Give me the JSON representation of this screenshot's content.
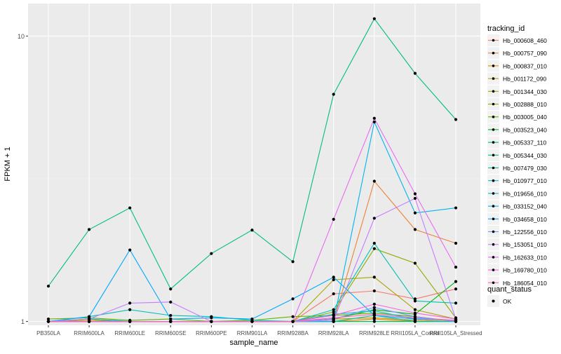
{
  "chart_data": {
    "type": "line",
    "xlabel": "sample_name",
    "ylabel": "FPKM + 1",
    "scale": "log10",
    "ylim": [
      0.97,
      13
    ],
    "y_ticks": [
      {
        "value": 1,
        "label": "1"
      },
      {
        "value": 10,
        "label": "10"
      }
    ],
    "categories": [
      "PB350LA",
      "RRIM600LA",
      "RRIM600LE",
      "RRIM600SE",
      "RRIM600PE",
      "RRIM901LA",
      "RRIM928BA",
      "RRIM928LA",
      "RRIM928LE",
      "RRII105LA_Control",
      "RRII105LA_Stressed"
    ],
    "legend_title": "tracking_id",
    "legend_position": "right",
    "legend2_title": "quant_status",
    "legend2_items": [
      "OK"
    ],
    "series": [
      {
        "name": "Hb_000608_460",
        "color": "#F8766D",
        "values": [
          1.0,
          1.02,
          1.0,
          1.0,
          1.0,
          1.0,
          1.0,
          1.25,
          1.28,
          1.2,
          1.3
        ]
      },
      {
        "name": "Hb_000757_090",
        "color": "#EC8239",
        "values": [
          1.0,
          1.0,
          1.0,
          1.0,
          1.0,
          1.0,
          1.0,
          1.0,
          3.1,
          2.1,
          1.88
        ]
      },
      {
        "name": "Hb_000837_010",
        "color": "#DB8E00",
        "values": [
          1.0,
          1.0,
          1.0,
          1.0,
          1.0,
          1.0,
          1.0,
          1.0,
          1.02,
          1.0,
          1.0
        ]
      },
      {
        "name": "Hb_001172_090",
        "color": "#C79800",
        "values": [
          1.0,
          1.01,
          1.0,
          1.0,
          1.0,
          1.0,
          1.0,
          1.02,
          1.03,
          1.01,
          1.0
        ]
      },
      {
        "name": "Hb_001344_030",
        "color": "#AEA200",
        "values": [
          1.0,
          1.0,
          1.0,
          1.0,
          1.0,
          1.0,
          1.0,
          1.4,
          1.43,
          1.1,
          1.02
        ]
      },
      {
        "name": "Hb_002888_010",
        "color": "#8FAA00",
        "values": [
          1.0,
          1.0,
          1.0,
          1.0,
          1.0,
          1.0,
          1.0,
          1.08,
          1.8,
          1.6,
          1.03
        ]
      },
      {
        "name": "Hb_003005_040",
        "color": "#64B200",
        "values": [
          1.02,
          1.03,
          1.01,
          1.02,
          1.0,
          1.01,
          1.04,
          1.05,
          1.07,
          1.04,
          1.0
        ]
      },
      {
        "name": "Hb_003523_040",
        "color": "#00B712",
        "values": [
          1.0,
          1.0,
          1.0,
          1.0,
          1.0,
          1.0,
          1.0,
          1.02,
          1.1,
          1.06,
          1.38
        ]
      },
      {
        "name": "Hb_005337_110",
        "color": "#00BC56",
        "values": [
          1.0,
          1.0,
          1.0,
          1.0,
          1.0,
          1.0,
          1.0,
          1.0,
          1.0,
          1.0,
          1.0
        ]
      },
      {
        "name": "Hb_005344_030",
        "color": "#00BF7D",
        "values": [
          1.33,
          2.1,
          2.5,
          1.3,
          1.73,
          2.09,
          1.62,
          6.25,
          11.5,
          7.4,
          5.1
        ]
      },
      {
        "name": "Hb_007479_030",
        "color": "#00C19F",
        "values": [
          1.0,
          1.0,
          1.0,
          1.0,
          1.0,
          1.0,
          1.0,
          1.0,
          1.05,
          1.0,
          1.0
        ]
      },
      {
        "name": "Hb_010977_010",
        "color": "#00C0BB",
        "values": [
          1.0,
          1.04,
          1.1,
          1.05,
          1.04,
          1.01,
          1.0,
          1.1,
          1.88,
          1.18,
          1.16
        ]
      },
      {
        "name": "Hb_019656_010",
        "color": "#00BCD6",
        "values": [
          1.0,
          1.0,
          1.0,
          1.0,
          1.0,
          1.0,
          1.0,
          1.06,
          1.09,
          1.02,
          1.01
        ]
      },
      {
        "name": "Hb_033152_040",
        "color": "#00B5EE",
        "values": [
          1.0,
          1.02,
          1.0,
          1.0,
          1.0,
          1.0,
          1.0,
          1.0,
          5.0,
          2.4,
          2.5
        ]
      },
      {
        "name": "Hb_034658_010",
        "color": "#00A9FF",
        "values": [
          1.0,
          1.04,
          1.78,
          1.02,
          1.03,
          1.02,
          1.2,
          1.43,
          1.05,
          1.02,
          1.01
        ]
      },
      {
        "name": "Hb_122556_010",
        "color": "#7099FF",
        "values": [
          1.0,
          1.0,
          1.0,
          1.0,
          1.0,
          1.0,
          1.0,
          1.02,
          1.12,
          1.04,
          1.0
        ]
      },
      {
        "name": "Hb_153051_010",
        "color": "#C77CFF",
        "values": [
          1.0,
          1.02,
          1.16,
          1.17,
          1.0,
          1.0,
          1.0,
          1.01,
          2.3,
          2.7,
          1.02
        ]
      },
      {
        "name": "Hb_162633_010",
        "color": "#E76BF3",
        "values": [
          1.0,
          1.0,
          1.0,
          1.0,
          1.0,
          1.0,
          1.0,
          2.28,
          5.15,
          2.8,
          1.55
        ]
      },
      {
        "name": "Hb_169780_010",
        "color": "#FA62DB",
        "values": [
          1.0,
          1.0,
          1.0,
          1.0,
          1.0,
          1.0,
          1.0,
          1.05,
          1.15,
          1.07,
          1.02
        ]
      },
      {
        "name": "Hb_186054_010",
        "color": "#FF62BC",
        "values": [
          1.0,
          1.0,
          1.0,
          1.0,
          1.0,
          1.0,
          1.0,
          1.03,
          1.06,
          1.03,
          1.01
        ]
      }
    ]
  }
}
